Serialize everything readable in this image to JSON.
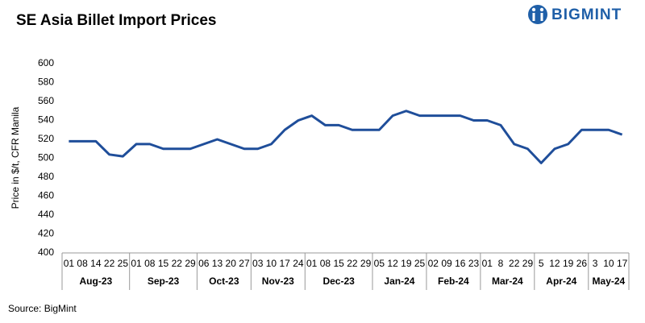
{
  "chart_data": {
    "type": "line",
    "title": "SE Asia Billet Import Prices",
    "logo": "BIGMINT",
    "y_label": "Price in $/t, CFR Manila",
    "source": "Source: BigMint",
    "categories": [
      "01",
      "08",
      "14",
      "22",
      "25",
      "01",
      "08",
      "15",
      "22",
      "29",
      "06",
      "13",
      "20",
      "27",
      "03",
      "10",
      "17",
      "24",
      "01",
      "08",
      "15",
      "22",
      "29",
      "05",
      "12",
      "19",
      "25",
      "02",
      "09",
      "16",
      "23",
      "01",
      "8",
      "22",
      "29",
      "5",
      "12",
      "19",
      "26",
      "3",
      "10",
      "17"
    ],
    "months": [
      "Aug-23",
      "Sep-23",
      "Oct-23",
      "Nov-23",
      "Dec-23",
      "Jan-24",
      "Feb-24",
      "Mar-24",
      "Apr-24",
      "May-24"
    ],
    "series": [
      {
        "name": "Price",
        "color": "#1f4e9a",
        "values": [
          518,
          518,
          518,
          504,
          502,
          515,
          515,
          510,
          510,
          510,
          515,
          520,
          515,
          510,
          510,
          515,
          530,
          540,
          545,
          535,
          535,
          530,
          530,
          530,
          545,
          550,
          545,
          545,
          545,
          545,
          540,
          540,
          535,
          515,
          510,
          495,
          510,
          515,
          530,
          530,
          530,
          525
        ]
      }
    ],
    "ylim": [
      400,
      600
    ],
    "yticks": [
      400,
      420,
      440,
      460,
      480,
      500,
      520,
      540,
      560,
      580,
      600
    ],
    "grid": false
  }
}
